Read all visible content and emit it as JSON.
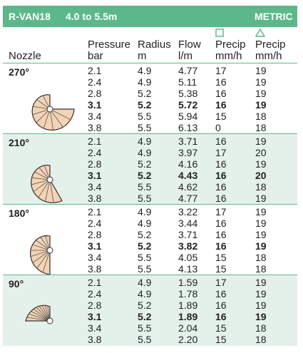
{
  "header": {
    "model": "R-VAN18",
    "range": "4.0 to 5.5m",
    "units": "METRIC"
  },
  "columns": [
    {
      "top": null,
      "bottom": "Nozzle"
    },
    {
      "top": "Pressure",
      "bottom": "bar"
    },
    {
      "top": "Radius",
      "bottom": "m"
    },
    {
      "top": "Flow",
      "bottom": "l/m"
    },
    {
      "top": "Precip",
      "bottom": "mm/h"
    },
    {
      "top": "Precip",
      "bottom": "mm/h"
    }
  ],
  "groups": [
    {
      "label": "270°",
      "rows": [
        [
          "2.1",
          "4.9",
          "4.77",
          "17",
          "19"
        ],
        [
          "2.4",
          "4.9",
          "5.11",
          "16",
          "19"
        ],
        [
          "2.8",
          "5.2",
          "5.38",
          "16",
          "19"
        ],
        [
          "3.1",
          "5.2",
          "5.72",
          "16",
          "19"
        ],
        [
          "3.4",
          "5.5",
          "5.94",
          "15",
          "18"
        ],
        [
          "3.8",
          "5.5",
          "6.13",
          "0",
          "18"
        ]
      ]
    },
    {
      "label": "210°",
      "rows": [
        [
          "2.1",
          "4.9",
          "3.71",
          "16",
          "19"
        ],
        [
          "2.4",
          "4.9",
          "3.97",
          "17",
          "20"
        ],
        [
          "2.8",
          "5.2",
          "4.16",
          "16",
          "19"
        ],
        [
          "3.1",
          "5.2",
          "4.43",
          "16",
          "20"
        ],
        [
          "3.4",
          "5.5",
          "4.62",
          "16",
          "18"
        ],
        [
          "3.8",
          "5.5",
          "4.77",
          "16",
          "19"
        ]
      ]
    },
    {
      "label": "180°",
      "rows": [
        [
          "2.1",
          "4.9",
          "3.22",
          "17",
          "19"
        ],
        [
          "2.4",
          "4.9",
          "3.44",
          "16",
          "19"
        ],
        [
          "2.8",
          "5.2",
          "3.71",
          "16",
          "19"
        ],
        [
          "3.1",
          "5.2",
          "3.82",
          "16",
          "19"
        ],
        [
          "3.4",
          "5.5",
          "4.05",
          "15",
          "18"
        ],
        [
          "3.8",
          "5.5",
          "4.13",
          "15",
          "18"
        ]
      ]
    },
    {
      "label": "90°",
      "rows": [
        [
          "2.1",
          "4.9",
          "1.59",
          "17",
          "19"
        ],
        [
          "2.4",
          "4.9",
          "1.78",
          "16",
          "19"
        ],
        [
          "2.8",
          "5.2",
          "1.89",
          "16",
          "19"
        ],
        [
          "3.1",
          "5.2",
          "1.89",
          "16",
          "19"
        ],
        [
          "3.4",
          "5.5",
          "2.04",
          "15",
          "18"
        ],
        [
          "3.8",
          "5.5",
          "2.20",
          "15",
          "18"
        ]
      ]
    }
  ]
}
